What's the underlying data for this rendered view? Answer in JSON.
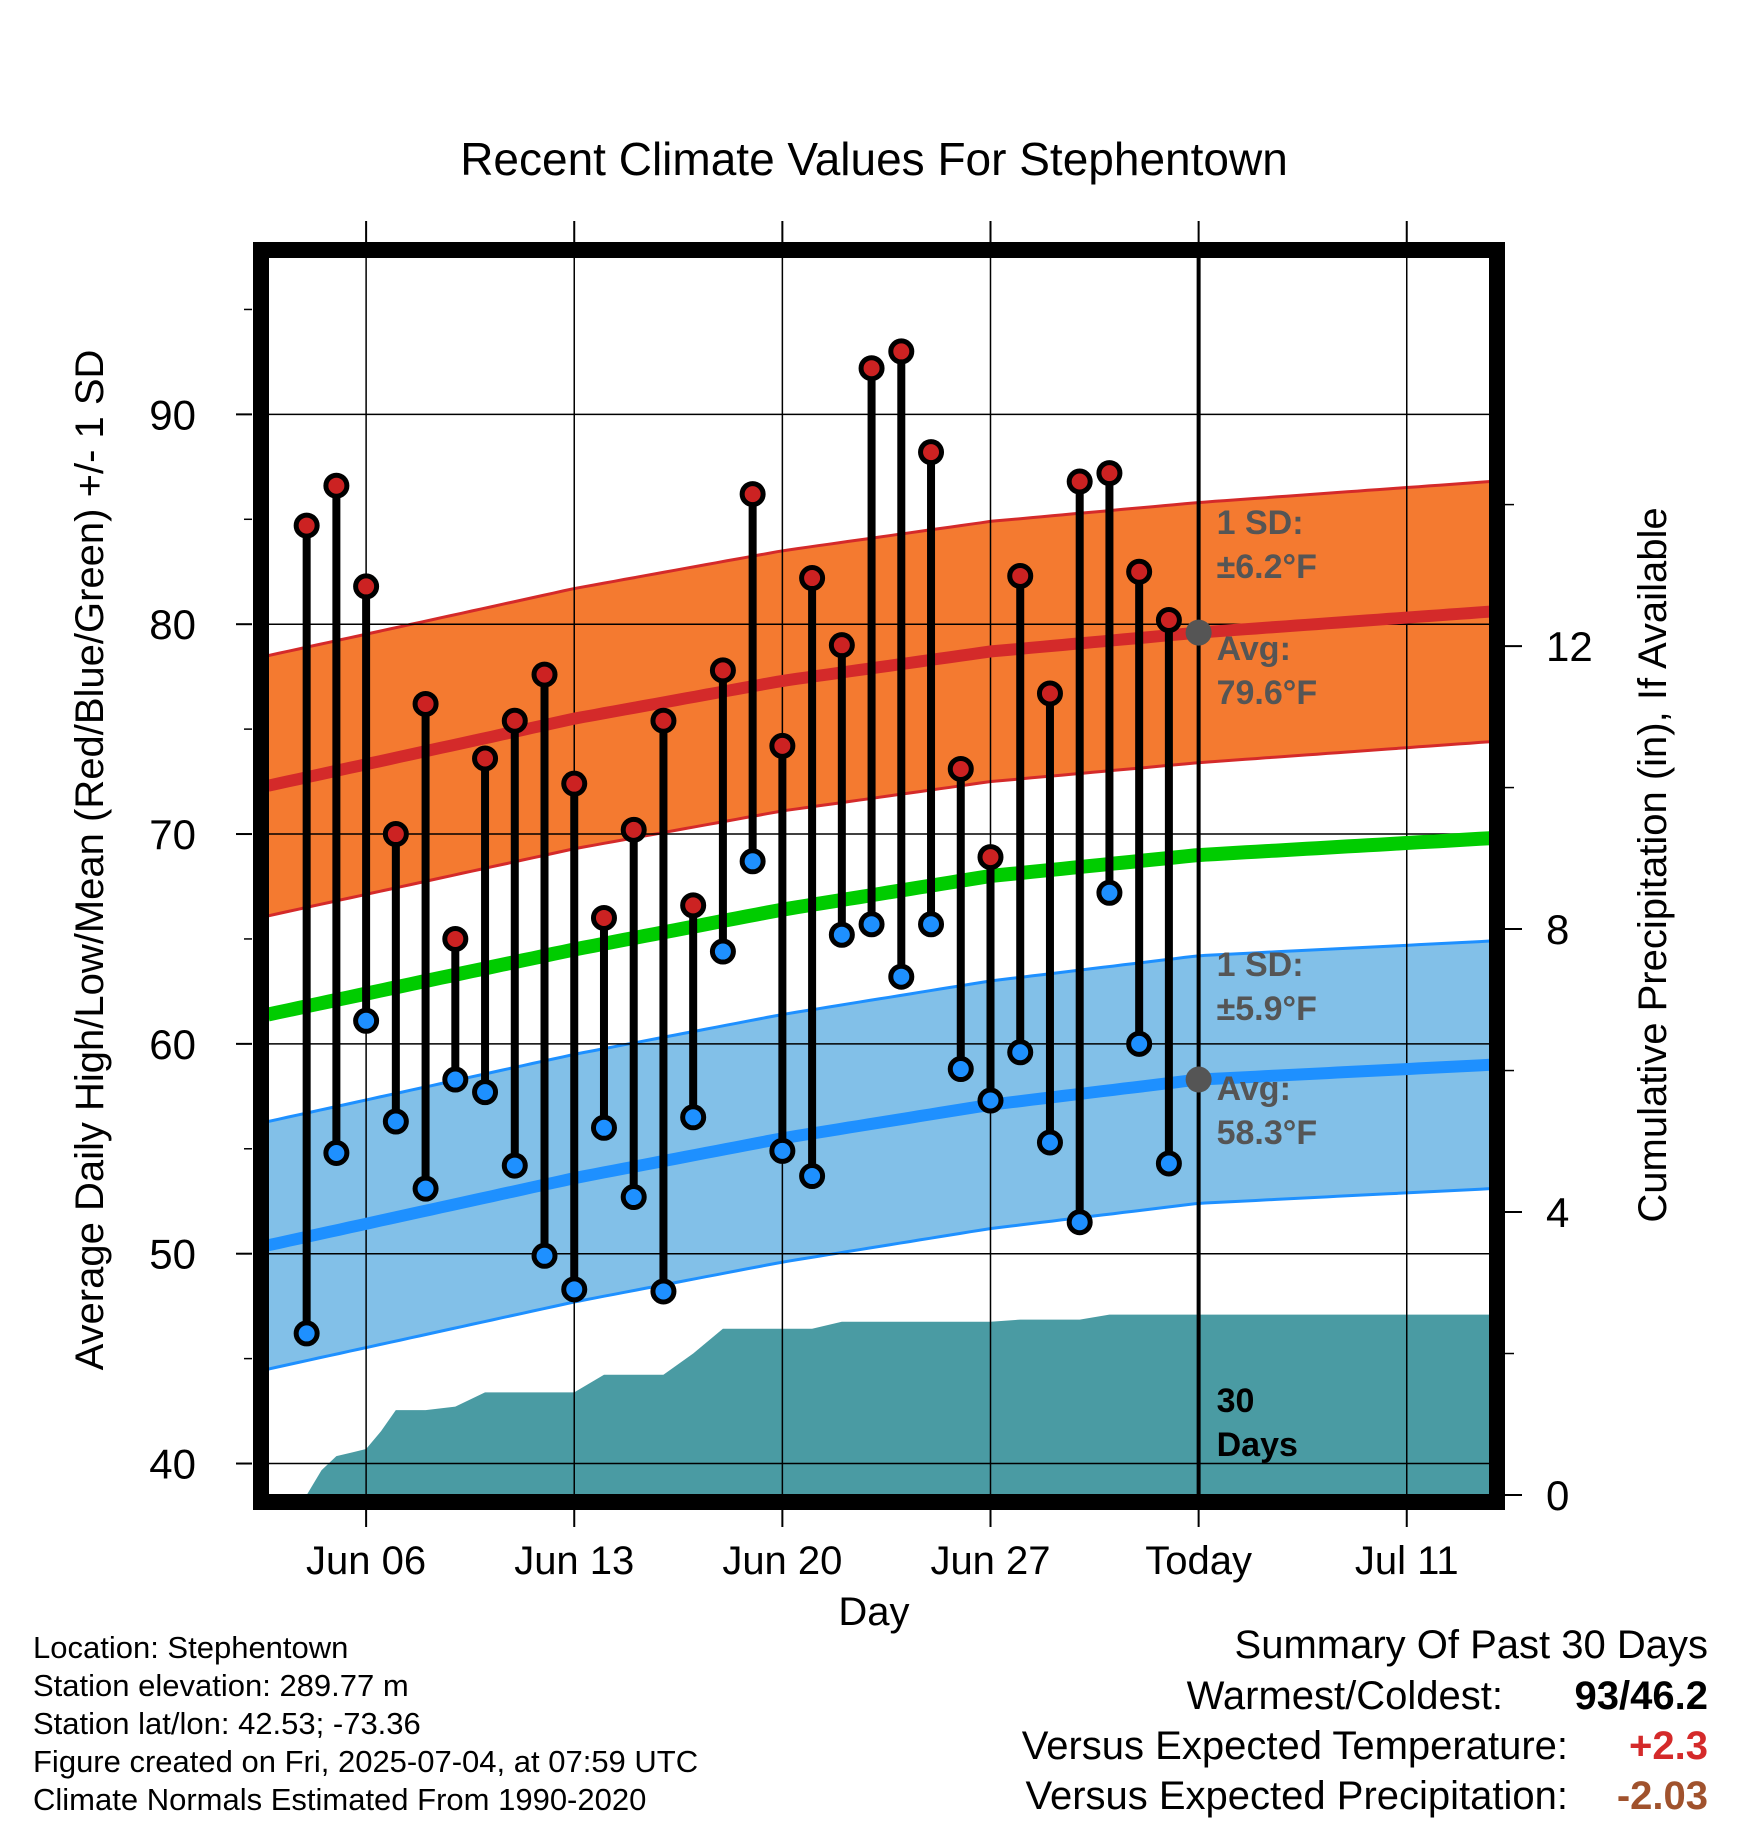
{
  "chart_data": {
    "type": "line",
    "title": "Recent Climate Values For Stephentown",
    "xlabel": "Day",
    "ylabel_left": "Average Daily High/Low/Mean (Red/Blue/Green) +/- 1 SD",
    "ylabel_right": "Cumulative Precipitation (in), If Available",
    "ylim_left": [
      38.5,
      97.5
    ],
    "ylim_right": [
      0,
      17.5
    ],
    "left_ticks": [
      40,
      50,
      60,
      70,
      80,
      90
    ],
    "right_ticks": [
      0,
      4,
      8,
      12
    ],
    "x_tick_labels": [
      "Jun 06",
      "Jun 13",
      "Jun 20",
      "Jun 27",
      "Today",
      "Jul 11"
    ],
    "x_tick_days": [
      6,
      13,
      20,
      27,
      34,
      41
    ],
    "xlim_days": [
      2.7,
      43.8
    ],
    "today_day": 34,
    "today_label": "Today",
    "daily": {
      "days": [
        4,
        5,
        6,
        7,
        8,
        9,
        10,
        11,
        12,
        13,
        14,
        15,
        16,
        17,
        18,
        19,
        20,
        21,
        22,
        23,
        24,
        25,
        26,
        27,
        28,
        29,
        30,
        31,
        32,
        33
      ],
      "high": [
        84.7,
        86.6,
        81.8,
        70.0,
        76.2,
        65.0,
        73.6,
        75.4,
        77.6,
        72.4,
        66.0,
        70.2,
        75.4,
        66.6,
        77.8,
        86.2,
        74.2,
        82.2,
        79.0,
        92.2,
        93.0,
        88.2,
        73.1,
        68.9,
        82.3,
        76.7,
        86.8,
        87.2,
        82.5,
        80.2
      ],
      "low": [
        46.2,
        54.8,
        61.1,
        56.3,
        53.1,
        58.3,
        57.7,
        54.2,
        49.9,
        48.3,
        56.0,
        52.7,
        48.2,
        56.5,
        64.4,
        68.7,
        54.9,
        53.7,
        65.2,
        65.7,
        63.2,
        65.7,
        58.8,
        57.3,
        59.6,
        55.3,
        51.5,
        67.2,
        60.0,
        54.3
      ]
    },
    "normals": {
      "days": [
        2.7,
        13,
        20,
        27,
        34,
        43.8
      ],
      "high_avg": [
        72.3,
        75.5,
        77.3,
        78.7,
        79.6,
        80.6
      ],
      "high_sd": 6.2,
      "low_avg": [
        50.4,
        53.6,
        55.5,
        57.1,
        58.3,
        59.0
      ],
      "low_sd": 5.9,
      "mean_avg": [
        61.4,
        64.5,
        66.4,
        68.0,
        69.0,
        69.8
      ]
    },
    "precip": {
      "days": [
        4,
        4.5,
        5,
        5.5,
        6,
        6.5,
        7,
        8,
        9,
        10,
        11,
        12,
        13,
        14,
        15,
        16,
        17,
        18,
        19,
        20,
        21,
        22,
        23,
        24,
        25,
        26,
        27,
        28,
        29,
        30,
        31,
        32,
        33,
        34,
        43.8
      ],
      "cumulative": [
        0,
        0.35,
        0.55,
        0.6,
        0.65,
        0.9,
        1.2,
        1.2,
        1.25,
        1.45,
        1.45,
        1.45,
        1.45,
        1.7,
        1.7,
        1.7,
        2.0,
        2.35,
        2.35,
        2.35,
        2.35,
        2.45,
        2.45,
        2.45,
        2.45,
        2.45,
        2.45,
        2.48,
        2.48,
        2.48,
        2.55,
        2.55,
        2.55,
        2.55,
        2.55
      ]
    },
    "annotations": {
      "high_sd_line1": "1 SD:",
      "high_sd_line2": "±6.2°F",
      "high_avg_line1": "Avg:",
      "high_avg_line2": "79.6°F",
      "low_sd_line1": "1 SD:",
      "low_sd_line2": "±5.9°F",
      "low_avg_line1": "Avg:",
      "low_avg_line2": "58.3°F",
      "precip_line1": "30",
      "precip_line2": "Days"
    },
    "colors": {
      "high_band": "#f47a30",
      "high_line": "#d42a2a",
      "low_band": "#82c0e8",
      "low_line": "#1e90ff",
      "mean_line": "#00cc00",
      "precip": "#4a9ba3",
      "high_dot": "#cc2222",
      "low_dot": "#1e90ff",
      "annotation": "#555555"
    }
  },
  "info": {
    "location": "Location: Stephentown",
    "elevation": "Station elevation: 289.77 m",
    "latlon": "Station lat/lon: 42.53; -73.36",
    "created": "Figure created on Fri, 2025-07-04, at 07:59 UTC",
    "normals": "Climate Normals Estimated From 1990-2020"
  },
  "summary": {
    "title": "Summary Of Past 30 Days",
    "warmest_label": "Warmest/Coldest:",
    "warmest_value": "93/46.2",
    "temp_label": "Versus Expected Temperature:",
    "temp_value": "+2.3",
    "temp_color": "#d42a2a",
    "precip_label": "Versus Expected Precipitation:",
    "precip_value": "-2.03",
    "precip_color": "#a0522d"
  }
}
